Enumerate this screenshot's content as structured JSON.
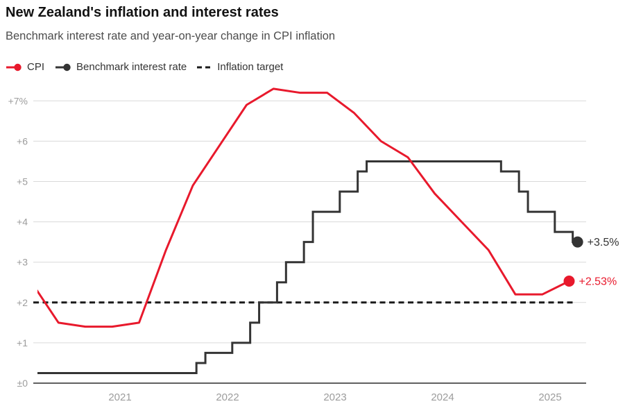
{
  "header": {
    "title": "New Zealand's inflation and interest rates",
    "subtitle": "Benchmark interest rate and year-on-year change in CPI inflation"
  },
  "legend": {
    "items": [
      {
        "label": "CPI",
        "color": "#e8192c",
        "marker": "line-dot"
      },
      {
        "label": "Benchmark interest rate",
        "color": "#343434",
        "marker": "line-dot"
      },
      {
        "label": "Inflation target",
        "color": "#1a1a1a",
        "marker": "dashes"
      }
    ]
  },
  "colors": {
    "cpi": "#e8192c",
    "benchmark_rate": "#343434",
    "target": "#1a1a1a",
    "grid": "#d9d9d9",
    "baseline": "#606060",
    "axis_text": "#9c9c9c"
  },
  "chart_data": {
    "type": "line",
    "title": "New Zealand's inflation and interest rates",
    "subtitle": "Benchmark interest rate and year-on-year change in CPI inflation",
    "grid": true,
    "legend_position": "top",
    "x_ticks": [
      "2021",
      "2022",
      "2023",
      "2024",
      "2025"
    ],
    "y_ticks": [
      {
        "value": 7,
        "label": "+7%"
      },
      {
        "value": 6,
        "label": "+6"
      },
      {
        "value": 5,
        "label": "+5"
      },
      {
        "value": 4,
        "label": "+4"
      },
      {
        "value": 3,
        "label": "+3"
      },
      {
        "value": 2,
        "label": "+2"
      },
      {
        "value": 1,
        "label": "+1"
      },
      {
        "value": 0,
        "label": "±0"
      }
    ],
    "ylim": [
      0,
      7.6
    ],
    "target_line": {
      "value": 2,
      "label": "Inflation target",
      "style": "dashed",
      "color": "#1a1a1a"
    },
    "series": [
      {
        "name": "CPI",
        "type": "line",
        "color": "#e8192c",
        "unit": "%",
        "end_label": "+2.53%",
        "points": [
          [
            "2020-03",
            2.5
          ],
          [
            "2020-06",
            1.5
          ],
          [
            "2020-09",
            1.4
          ],
          [
            "2020-12",
            1.4
          ],
          [
            "2021-03",
            1.5
          ],
          [
            "2021-06",
            3.3
          ],
          [
            "2021-09",
            4.9
          ],
          [
            "2021-12",
            5.9
          ],
          [
            "2022-03",
            6.9
          ],
          [
            "2022-06",
            7.3
          ],
          [
            "2022-09",
            7.2
          ],
          [
            "2022-12",
            7.2
          ],
          [
            "2023-03",
            6.7
          ],
          [
            "2023-06",
            6.0
          ],
          [
            "2023-09",
            5.6
          ],
          [
            "2023-12",
            4.7
          ],
          [
            "2024-03",
            4.0
          ],
          [
            "2024-06",
            3.3
          ],
          [
            "2024-09",
            2.2
          ],
          [
            "2024-12",
            2.2
          ],
          [
            "2025-03",
            2.53
          ]
        ]
      },
      {
        "name": "Benchmark interest rate",
        "type": "step",
        "color": "#343434",
        "unit": "%",
        "end_label": "+3.5%",
        "points": [
          [
            "2020-03",
            0.25
          ],
          [
            "2021-10",
            0.5
          ],
          [
            "2021-11",
            0.75
          ],
          [
            "2022-02",
            1.0
          ],
          [
            "2022-04",
            1.5
          ],
          [
            "2022-05",
            2.0
          ],
          [
            "2022-07",
            2.5
          ],
          [
            "2022-08",
            3.0
          ],
          [
            "2022-10",
            3.5
          ],
          [
            "2022-11",
            4.25
          ],
          [
            "2023-02",
            4.75
          ],
          [
            "2023-04",
            5.25
          ],
          [
            "2023-05",
            5.5
          ],
          [
            "2024-08",
            5.25
          ],
          [
            "2024-10",
            4.75
          ],
          [
            "2024-11",
            4.25
          ],
          [
            "2025-02",
            3.75
          ],
          [
            "2025-04",
            3.5
          ]
        ]
      }
    ]
  }
}
